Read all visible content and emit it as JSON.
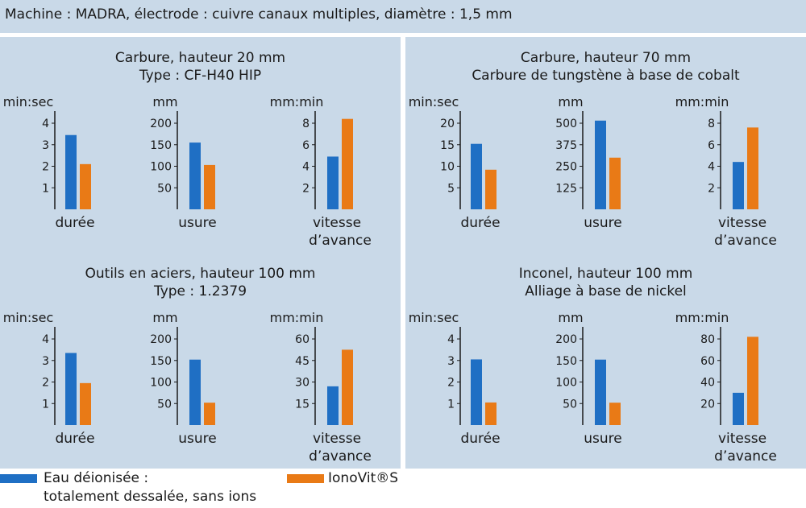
{
  "header": {
    "text": "Machine : MADRA, électrode : cuivre canaux multiples, diamètre : 1,5 mm"
  },
  "colors": {
    "deionized": "#1f6fc4",
    "ionovit": "#e97a16",
    "panel_bg": "#c9d9e8"
  },
  "legend": {
    "deionized_line1": "Eau déionisée :",
    "deionized_line2": "totalement dessalée, sans ions",
    "ionovit_label": "IonoVit®S"
  },
  "chart_data": [
    {
      "type": "bar",
      "title_line1": "Carbure, hauteur 20 mm",
      "title_line2": "Type : CF-H40 HIP",
      "subcharts": [
        {
          "unit": "min:sec",
          "label_line1": "durée",
          "label_line2": "",
          "ticks": [
            1,
            2,
            3,
            4
          ],
          "ylim": [
            0,
            4.3
          ],
          "values": [
            3.45,
            2.1
          ]
        },
        {
          "unit": "mm",
          "label_line1": "usure",
          "label_line2": "",
          "ticks": [
            50,
            100,
            150,
            200
          ],
          "ylim": [
            0,
            215
          ],
          "values": [
            155,
            103
          ]
        },
        {
          "unit": "mm:min",
          "label_line1": "vitesse",
          "label_line2": "d’avance",
          "ticks": [
            2,
            4,
            6,
            8
          ],
          "ylim": [
            0,
            8.6
          ],
          "values": [
            4.9,
            8.4
          ]
        }
      ]
    },
    {
      "type": "bar",
      "title_line1": "Carbure, hauteur 70 mm",
      "title_line2": "Carbure de tungstène à base de cobalt",
      "subcharts": [
        {
          "unit": "min:sec",
          "label_line1": "durée",
          "label_line2": "",
          "ticks": [
            5,
            10,
            15,
            20
          ],
          "ylim": [
            0,
            21.5
          ],
          "values": [
            15.2,
            9.2
          ]
        },
        {
          "unit": "mm",
          "label_line1": "usure",
          "label_line2": "",
          "ticks": [
            125,
            250,
            375,
            500
          ],
          "ylim": [
            0,
            537.5
          ],
          "values": [
            515,
            300
          ]
        },
        {
          "unit": "mm:min",
          "label_line1": "vitesse",
          "label_line2": "d’avance",
          "ticks": [
            2,
            4,
            6,
            8
          ],
          "ylim": [
            0,
            8.6
          ],
          "values": [
            4.4,
            7.6
          ]
        }
      ]
    },
    {
      "type": "bar",
      "title_line1": "Outils en aciers, hauteur 100 mm",
      "title_line2": "Type : 1.2379",
      "subcharts": [
        {
          "unit": "min:sec",
          "label_line1": "durée",
          "label_line2": "",
          "ticks": [
            1,
            2,
            3,
            4
          ],
          "ylim": [
            0,
            4.3
          ],
          "values": [
            3.35,
            1.95
          ]
        },
        {
          "unit": "mm",
          "label_line1": "usure",
          "label_line2": "",
          "ticks": [
            50,
            100,
            150,
            200
          ],
          "ylim": [
            0,
            215
          ],
          "values": [
            152,
            52
          ]
        },
        {
          "unit": "mm:min",
          "label_line1": "vitesse",
          "label_line2": "d’avance",
          "ticks": [
            15,
            30,
            45,
            60
          ],
          "ylim": [
            0,
            64.5
          ],
          "values": [
            27,
            52.5
          ]
        }
      ]
    },
    {
      "type": "bar",
      "title_line1": "Inconel, hauteur 100 mm",
      "title_line2": "Alliage à base de nickel",
      "subcharts": [
        {
          "unit": "min:sec",
          "label_line1": "durée",
          "label_line2": "",
          "ticks": [
            1,
            2,
            3,
            4
          ],
          "ylim": [
            0,
            4.3
          ],
          "values": [
            3.05,
            1.05
          ]
        },
        {
          "unit": "mm",
          "label_line1": "usure",
          "label_line2": "",
          "ticks": [
            50,
            100,
            150,
            200
          ],
          "ylim": [
            0,
            215
          ],
          "values": [
            152,
            52
          ]
        },
        {
          "unit": "mm:min",
          "label_line1": "vitesse",
          "label_line2": "d’avance",
          "ticks": [
            20,
            40,
            60,
            80
          ],
          "ylim": [
            0,
            86
          ],
          "values": [
            30,
            82
          ]
        }
      ]
    }
  ]
}
